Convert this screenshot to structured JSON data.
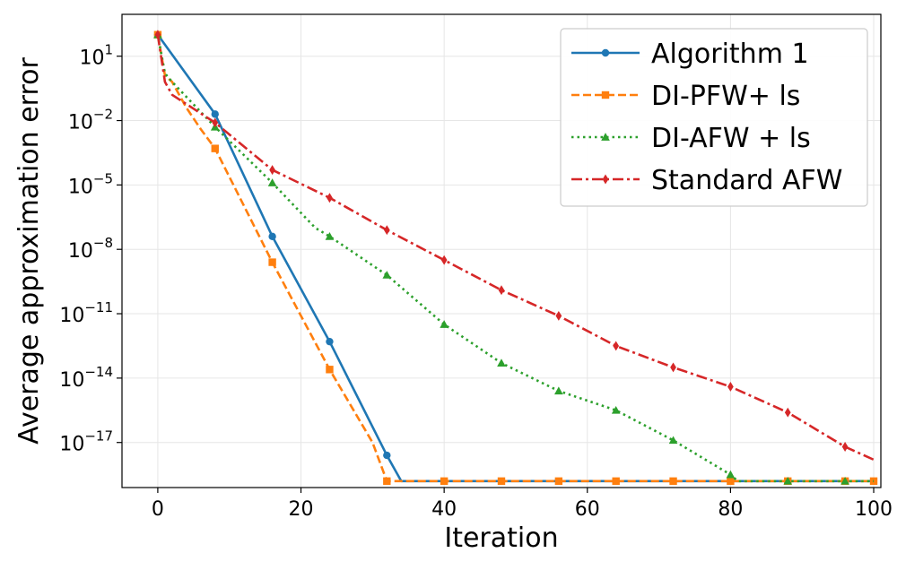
{
  "chart_data": {
    "type": "line",
    "title": "",
    "xlabel": "Iteration",
    "ylabel": "Average approximation error",
    "x_scale": "linear",
    "y_scale": "log",
    "xlim": [
      -5,
      101
    ],
    "ylim_log10": [
      -19.1,
      2.95
    ],
    "x_ticks": [
      0,
      20,
      40,
      60,
      80,
      100
    ],
    "x_tick_labels": [
      "0",
      "20",
      "40",
      "60",
      "80",
      "100"
    ],
    "y_tick_exponents": [
      1,
      -2,
      -5,
      -8,
      -11,
      -14,
      -17
    ],
    "y_tick_labels": [
      {
        "base": "10",
        "exp": "1"
      },
      {
        "base": "10",
        "exp": "−2"
      },
      {
        "base": "10",
        "exp": "−5"
      },
      {
        "base": "10",
        "exp": "−8"
      },
      {
        "base": "10",
        "exp": "−11"
      },
      {
        "base": "10",
        "exp": "−14"
      },
      {
        "base": "10",
        "exp": "−17"
      }
    ],
    "grid": true,
    "legend_position": "top-right",
    "series": [
      {
        "name": "Algorithm 1",
        "color": "#1f77b4",
        "line_style": "solid",
        "marker": "circle",
        "x": [
          0,
          8,
          16,
          24,
          32,
          34,
          40,
          48,
          56,
          64,
          72,
          80,
          88,
          96,
          100
        ],
        "log10_y": [
          2.0,
          -1.7,
          -7.4,
          -12.3,
          -17.6,
          -18.8,
          -18.8,
          -18.8,
          -18.8,
          -18.8,
          -18.8,
          -18.8,
          -18.8,
          -18.8,
          -18.8
        ],
        "marker_x": [
          0,
          8,
          16,
          24,
          32
        ]
      },
      {
        "name": "DI-PFW+ ls",
        "color": "#ff7f0e",
        "line_style": "dashed",
        "marker": "square",
        "x": [
          0,
          1,
          2,
          4,
          6,
          8,
          16,
          24,
          30,
          32,
          40,
          48,
          56,
          64,
          72,
          80,
          88,
          96,
          100
        ],
        "log10_y": [
          2.0,
          0.1,
          -0.2,
          -1.4,
          -2.4,
          -3.3,
          -8.6,
          -13.6,
          -17.0,
          -18.8,
          -18.8,
          -18.8,
          -18.8,
          -18.8,
          -18.8,
          -18.8,
          -18.8,
          -18.8,
          -18.8
        ],
        "marker_x": [
          0,
          8,
          16,
          24,
          32,
          40,
          48,
          56,
          64,
          72,
          80,
          88,
          96,
          100
        ]
      },
      {
        "name": "DI-AFW + ls",
        "color": "#2ca02c",
        "line_style": "dotted",
        "marker": "triangle",
        "x": [
          0,
          1,
          2,
          8,
          16,
          22,
          24,
          32,
          40,
          48,
          56,
          64,
          72,
          80,
          81,
          88,
          96,
          100
        ],
        "log10_y": [
          2.0,
          0.2,
          -0.2,
          -2.3,
          -4.9,
          -7.0,
          -7.4,
          -9.2,
          -11.5,
          -13.3,
          -14.6,
          -15.5,
          -16.9,
          -18.5,
          -18.8,
          -18.8,
          -18.8,
          -18.8
        ],
        "marker_x": [
          0,
          8,
          16,
          24,
          32,
          40,
          48,
          56,
          64,
          72,
          80,
          88,
          96
        ]
      },
      {
        "name": "Standard AFW",
        "color": "#d62728",
        "line_style": "dashdot",
        "marker": "diamond",
        "x": [
          0,
          1,
          2,
          8,
          16,
          24,
          32,
          40,
          48,
          56,
          64,
          72,
          80,
          88,
          96,
          100
        ],
        "log10_y": [
          2.0,
          -0.2,
          -0.8,
          -2.1,
          -4.3,
          -5.6,
          -7.1,
          -8.5,
          -9.9,
          -11.1,
          -12.5,
          -13.5,
          -14.4,
          -15.6,
          -17.2,
          -17.8
        ],
        "marker_x": [
          0,
          8,
          16,
          24,
          32,
          40,
          48,
          56,
          64,
          72,
          80,
          88,
          96
        ]
      }
    ]
  }
}
